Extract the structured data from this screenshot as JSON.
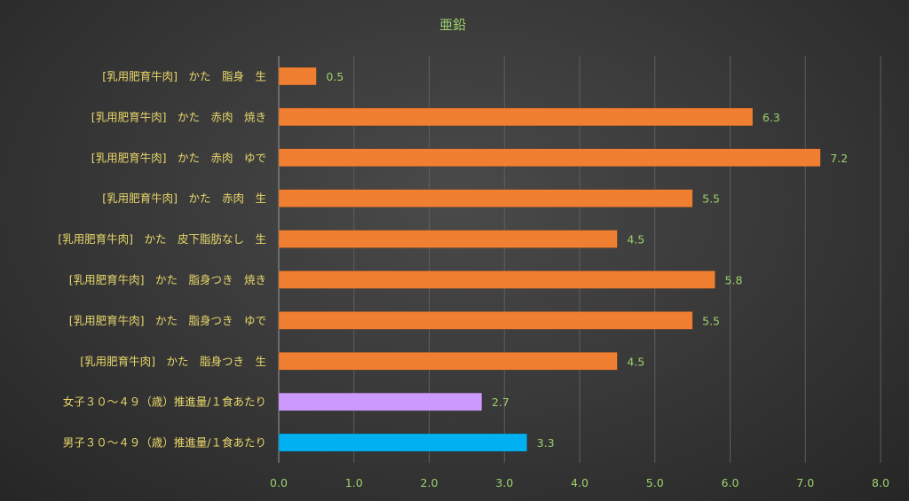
{
  "chart_data": {
    "type": "bar",
    "orientation": "horizontal",
    "title": "亜鉛",
    "xlim": [
      0,
      8
    ],
    "xticks": [
      "0.0",
      "1.0",
      "2.0",
      "3.0",
      "4.0",
      "5.0",
      "6.0",
      "7.0",
      "8.0"
    ],
    "grid": true,
    "categories": [
      "[乳用肥育牛肉]　かた　脂身　生",
      "[乳用肥育牛肉]　かた　赤肉　焼き",
      "[乳用肥育牛肉]　かた　赤肉　ゆで",
      "[乳用肥育牛肉]　かた　赤肉　生",
      "[乳用肥育牛肉]　かた　皮下脂肪なし　生",
      "[乳用肥育牛肉]　かた　脂身つき　焼き",
      "[乳用肥育牛肉]　かた　脂身つき　ゆで",
      "[乳用肥育牛肉]　かた　脂身つき　生",
      "女子３０～４９（歳）推進量/１食あたり",
      "男子３０～４９（歳）推進量/１食あたり"
    ],
    "values": [
      0.5,
      6.3,
      7.2,
      5.5,
      4.5,
      5.8,
      5.5,
      4.5,
      2.7,
      3.3
    ],
    "value_labels": [
      "0.5",
      "6.3",
      "7.2",
      "5.5",
      "4.5",
      "5.8",
      "5.5",
      "4.5",
      "2.7",
      "3.3"
    ],
    "colors": [
      "#f07f32",
      "#f07f32",
      "#f07f32",
      "#f07f32",
      "#f07f32",
      "#f07f32",
      "#f07f32",
      "#f07f32",
      "#cc99ff",
      "#00b0f0"
    ]
  }
}
